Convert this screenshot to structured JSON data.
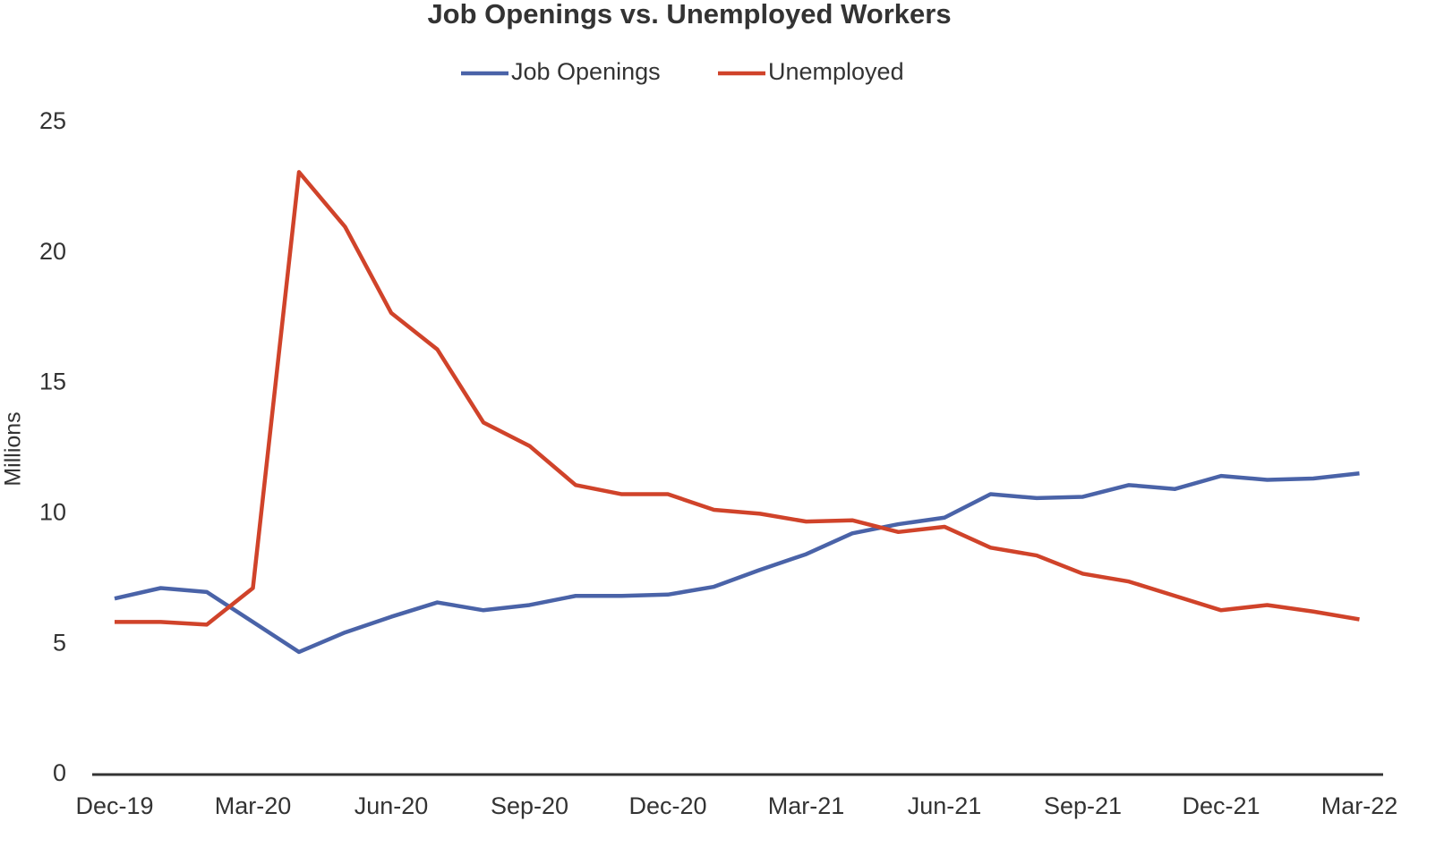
{
  "chart_data": {
    "type": "line",
    "title": "Job Openings vs. Unemployed Workers",
    "y_label": "Millions",
    "categories": [
      "Dec-19",
      null,
      null,
      "Mar-20",
      null,
      null,
      "Jun-20",
      null,
      null,
      "Sep-20",
      null,
      null,
      "Dec-20",
      null,
      null,
      "Mar-21",
      null,
      null,
      "Jun-21",
      null,
      null,
      "Sep-21",
      null,
      null,
      "Dec-21",
      null,
      null,
      "Mar-22"
    ],
    "series": [
      {
        "name": "Job Openings",
        "color": "#4a63a8",
        "values": [
          6.75,
          7.15,
          7.0,
          5.85,
          4.7,
          5.45,
          6.05,
          6.6,
          6.3,
          6.5,
          6.85,
          6.85,
          6.9,
          7.2,
          7.85,
          8.45,
          9.25,
          9.6,
          9.85,
          10.75,
          10.6,
          10.65,
          11.1,
          10.95,
          11.45,
          11.3,
          11.35,
          11.55
        ]
      },
      {
        "name": "Unemployed",
        "color": "#d0432a",
        "values": [
          5.85,
          5.85,
          5.75,
          7.15,
          23.1,
          21.0,
          17.7,
          16.3,
          13.5,
          12.6,
          11.1,
          10.75,
          10.75,
          10.15,
          10.0,
          9.7,
          9.75,
          9.3,
          9.5,
          8.7,
          8.4,
          7.7,
          7.4,
          6.85,
          6.3,
          6.5,
          6.25,
          5.95
        ]
      }
    ],
    "ylim": [
      0,
      25
    ],
    "yticks": [
      0,
      5,
      10,
      15,
      20,
      25
    ],
    "grid": false,
    "legend": "top"
  }
}
